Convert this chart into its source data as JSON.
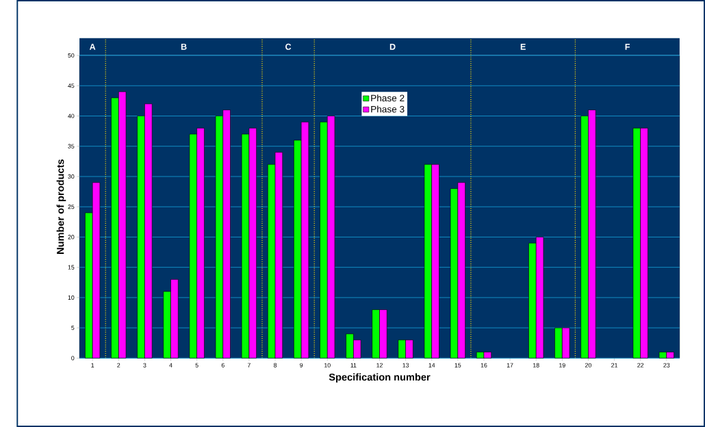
{
  "chart_data": {
    "type": "bar",
    "xlabel": "Specification number",
    "ylabel": "Number of products",
    "categories": [
      "1",
      "2",
      "3",
      "4",
      "5",
      "6",
      "7",
      "8",
      "9",
      "10",
      "11",
      "12",
      "13",
      "14",
      "15",
      "16",
      "17",
      "18",
      "19",
      "20",
      "21",
      "22",
      "23"
    ],
    "series": [
      {
        "name": "Phase 2",
        "color": "#00ff00",
        "values": [
          24,
          43,
          40,
          11,
          37,
          40,
          37,
          32,
          36,
          39,
          4,
          8,
          3,
          32,
          28,
          1,
          null,
          19,
          5,
          40,
          null,
          38,
          1
        ]
      },
      {
        "name": "Phase 3",
        "color": "#ff00ff",
        "values": [
          29,
          44,
          42,
          13,
          38,
          41,
          38,
          34,
          39,
          40,
          3,
          8,
          3,
          32,
          29,
          1,
          null,
          20,
          5,
          41,
          null,
          38,
          1
        ]
      }
    ],
    "ylim": [
      0,
      50
    ],
    "yticks": [
      0,
      5,
      10,
      15,
      20,
      25,
      30,
      35,
      40,
      45,
      50
    ],
    "grid": "y",
    "legend": "top",
    "bands": [
      {
        "axis": "x",
        "from": "1",
        "to": "1",
        "label": "A",
        "color": "#003366"
      },
      {
        "axis": "x",
        "from": "2",
        "to": "7",
        "label": "B",
        "color": "#003366"
      },
      {
        "axis": "x",
        "from": "8",
        "to": "9",
        "label": "C",
        "color": "#003366"
      },
      {
        "axis": "x",
        "from": "10",
        "to": "15",
        "label": "D",
        "color": "#003366"
      },
      {
        "axis": "x",
        "from": "16",
        "to": "19",
        "label": "E",
        "color": "#003366"
      },
      {
        "axis": "x",
        "from": "20",
        "to": "23",
        "label": "F",
        "color": "#003366"
      }
    ]
  }
}
